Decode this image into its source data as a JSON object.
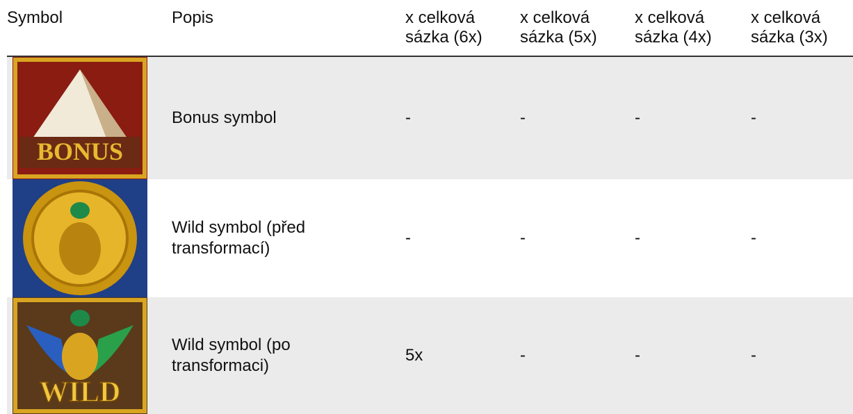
{
  "table": {
    "header": [
      "Symbol",
      "Popis",
      "x celková sázka (6x)",
      "x celková sázka (5x)",
      "x celková sázka (4x)",
      "x celková sázka (3x)"
    ],
    "rows": [
      {
        "icon_label": "BONUS",
        "description": "Bonus symbol",
        "payouts": [
          "-",
          "-",
          "-",
          "-"
        ]
      },
      {
        "description": "Wild symbol (před transformací)",
        "payouts": [
          "-",
          "-",
          "-",
          "-"
        ]
      },
      {
        "icon_label": "WILD",
        "description": "Wild symbol (po transformaci)",
        "payouts": [
          "5x",
          "-",
          "-",
          "-"
        ]
      }
    ]
  }
}
